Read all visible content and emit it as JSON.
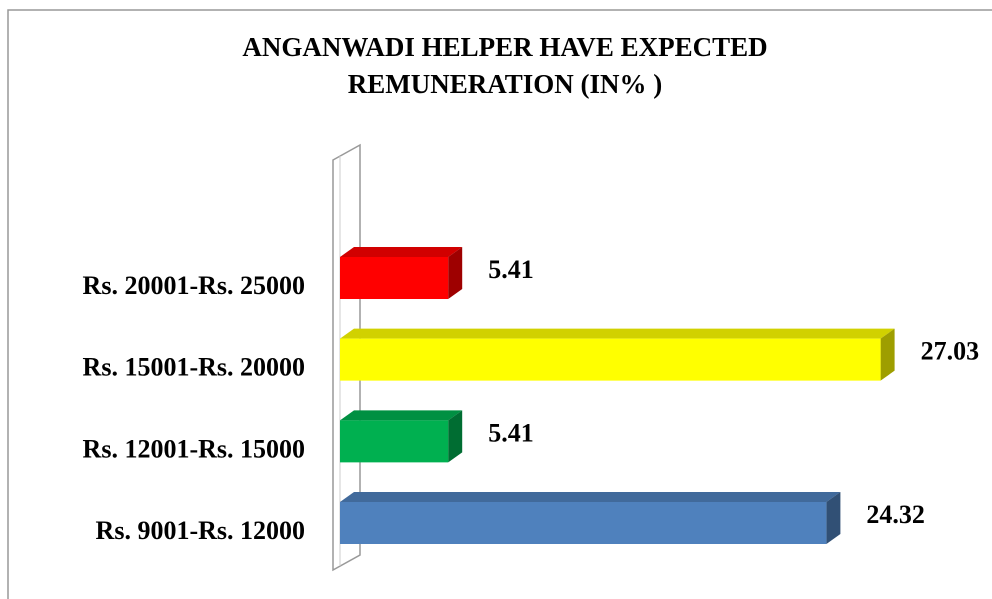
{
  "chart_data": {
    "type": "bar",
    "orientation": "horizontal",
    "title": [
      "ANGANWADI HELPER HAVE EXPECTED",
      "REMUNERATION (IN% )"
    ],
    "categories": [
      "Rs. 9001-Rs. 12000",
      "Rs. 12001-Rs. 15000",
      "Rs. 15001-Rs. 20000",
      "Rs. 20001-Rs. 25000"
    ],
    "values": [
      24.32,
      5.41,
      27.03,
      5.41
    ],
    "colors": [
      "#4f81bd",
      "#00b050",
      "#ffff00",
      "#ff0000"
    ],
    "xlim": [
      0,
      30
    ]
  }
}
